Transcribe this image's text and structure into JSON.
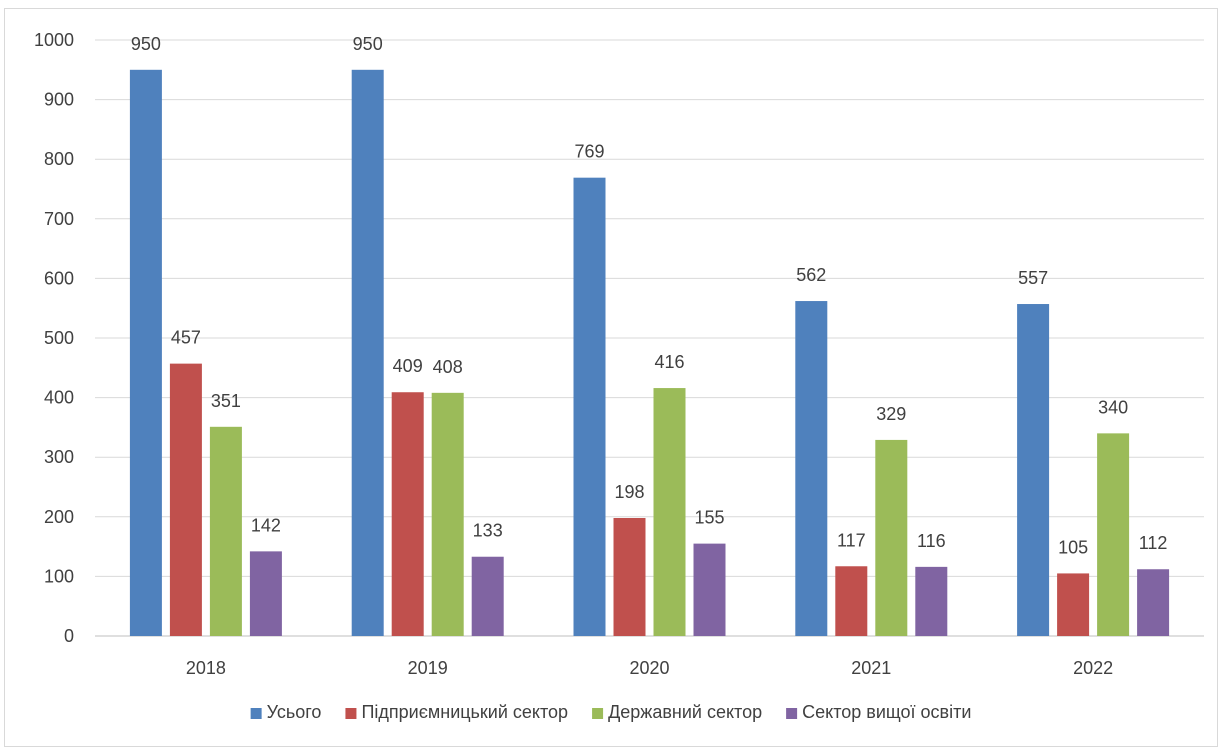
{
  "chart_data": {
    "type": "bar",
    "title": "",
    "xlabel": "",
    "ylabel": "",
    "ylim": [
      0,
      1000
    ],
    "yticks": [
      0,
      100,
      200,
      300,
      400,
      500,
      600,
      700,
      800,
      900,
      1000
    ],
    "grid": true,
    "legend_position": "bottom",
    "categories": [
      "2018",
      "2019",
      "2020",
      "2021",
      "2022"
    ],
    "series": [
      {
        "name": "Усього",
        "color": "#4f81bd",
        "values": [
          950,
          950,
          769,
          562,
          557
        ]
      },
      {
        "name": "Підприємницький сектор",
        "color": "#c0504d",
        "values": [
          457,
          409,
          198,
          117,
          105
        ]
      },
      {
        "name": "Державний сектор",
        "color": "#9bbb59",
        "values": [
          351,
          408,
          416,
          329,
          340
        ]
      },
      {
        "name": "Сектор вищої освіти",
        "color": "#8064a2",
        "values": [
          142,
          133,
          155,
          116,
          112
        ]
      }
    ]
  }
}
